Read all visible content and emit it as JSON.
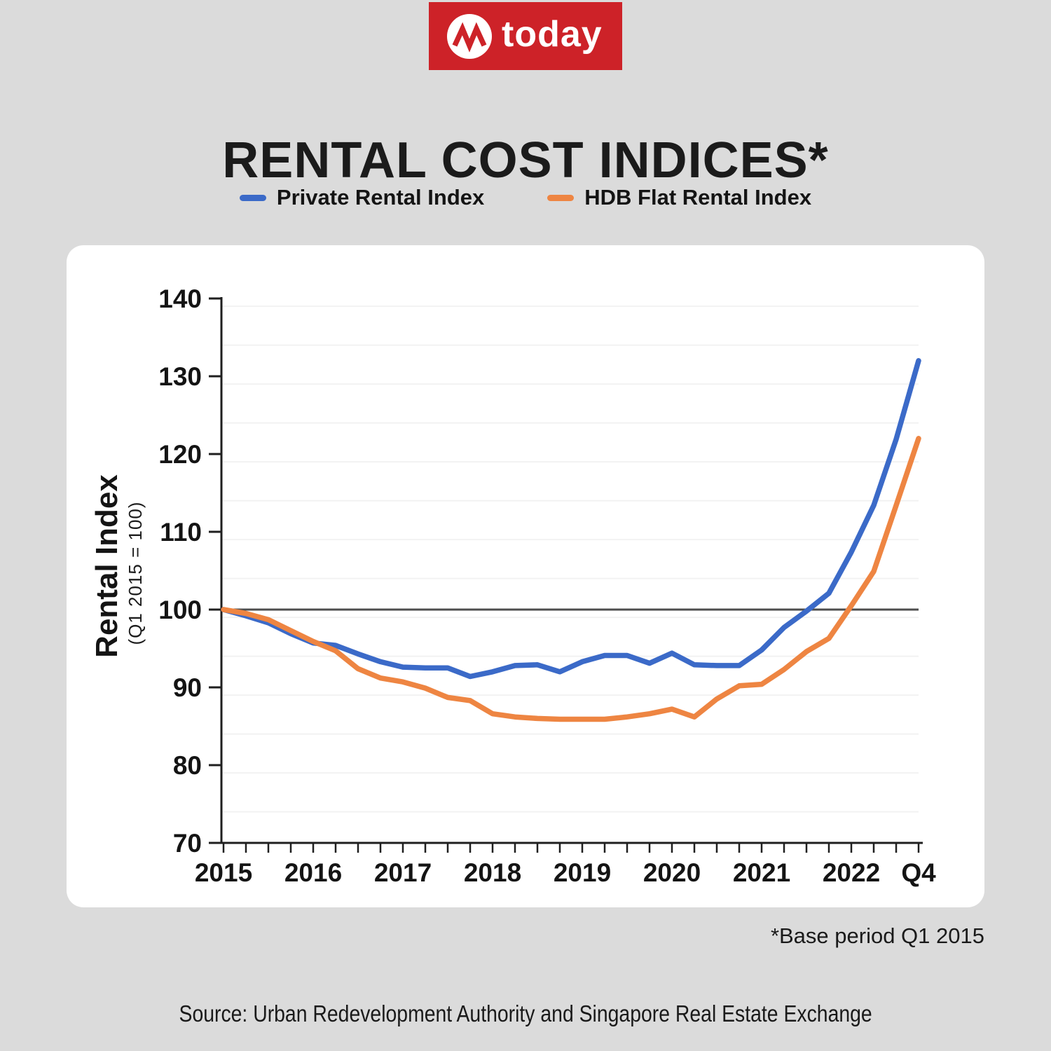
{
  "header": {
    "logo_text": "today",
    "title": "RENTAL COST INDICES*"
  },
  "legend": {
    "items": [
      {
        "label": "Private Rental Index",
        "color": "#3B6AC8"
      },
      {
        "label": "HDB Flat Rental Index",
        "color": "#EE8542"
      }
    ]
  },
  "chart_data": {
    "type": "line",
    "title": "RENTAL COST INDICES*",
    "x_axis": {
      "unit": "quarter",
      "start": "Q1 2015",
      "end": "Q4 2022",
      "labels": [
        {
          "text": "2015",
          "q": 0
        },
        {
          "text": "2016",
          "q": 4
        },
        {
          "text": "2017",
          "q": 8
        },
        {
          "text": "2018",
          "q": 12
        },
        {
          "text": "2019",
          "q": 16
        },
        {
          "text": "2020",
          "q": 20
        },
        {
          "text": "2021",
          "q": 24
        },
        {
          "text": "2022",
          "q": 28
        },
        {
          "text": "Q4",
          "q": 31
        }
      ]
    },
    "y_axis": {
      "title": "Rental Index",
      "subtitle": "(Q1 2015 = 100)",
      "ticks": [
        70,
        80,
        90,
        100,
        110,
        120,
        130,
        140
      ],
      "range": [
        70,
        140
      ],
      "reference_line": 100
    },
    "grid": "minor horizontal lines every 5 index points",
    "legend_position": "top",
    "series": [
      {
        "name": "Private Rental Index",
        "color": "#3B6AC8",
        "values": [
          100.0,
          99.2,
          98.3,
          96.9,
          95.7,
          95.4,
          94.3,
          93.3,
          92.6,
          92.5,
          92.5,
          91.4,
          92.0,
          92.8,
          92.9,
          92.0,
          93.3,
          94.1,
          94.1,
          93.1,
          94.4,
          92.9,
          92.8,
          92.8,
          94.8,
          97.7,
          99.8,
          102.1,
          107.4,
          113.4,
          121.9,
          132.0
        ]
      },
      {
        "name": "HDB Flat Rental Index",
        "color": "#EE8542",
        "values": [
          100.0,
          99.5,
          98.7,
          97.3,
          95.9,
          94.7,
          92.4,
          91.2,
          90.7,
          89.9,
          88.7,
          88.3,
          86.6,
          86.2,
          86.0,
          85.9,
          85.9,
          85.9,
          86.2,
          86.6,
          87.2,
          86.2,
          88.5,
          90.2,
          90.4,
          92.3,
          94.6,
          96.3,
          100.5,
          104.9,
          113.4,
          122.0
        ]
      }
    ],
    "footnote": "*Base period Q1 2015"
  },
  "chart": {
    "footnote": "*Base period Q1 2015"
  },
  "footer": {
    "source": "Source: Urban Redevelopment Authority and Singapore Real Estate Exchange"
  },
  "colors": {
    "brand_red": "#CD2228",
    "background": "#DBDBDB",
    "card": "#FFFFFF",
    "private_line": "#3B6AC8",
    "hdb_line": "#EE8542"
  }
}
